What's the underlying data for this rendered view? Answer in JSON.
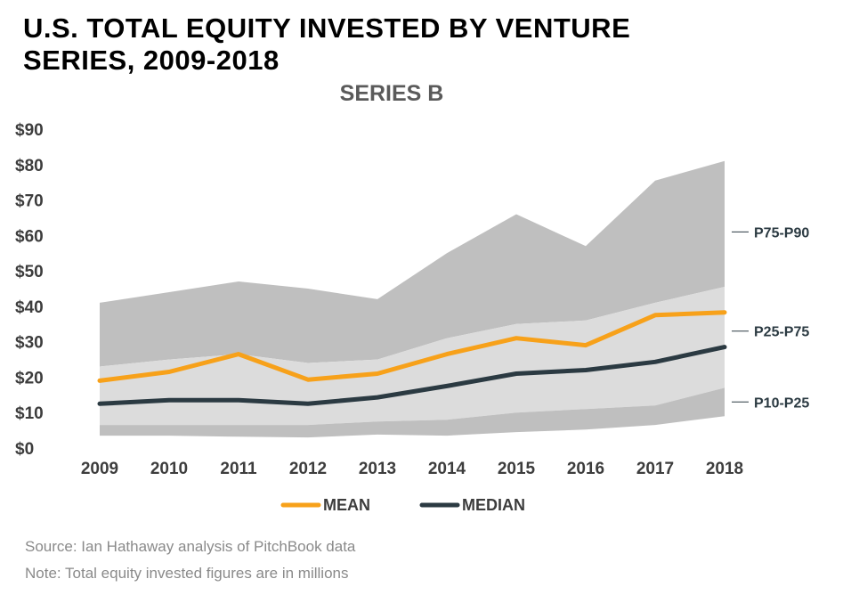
{
  "title_line1": "U.S. TOTAL EQUITY INVESTED BY VENTURE",
  "title_line2": "SERIES, 2009-2018",
  "source": "Source: Ian Hathaway analysis of PitchBook data",
  "note": "Note: Total equity invested figures are in millions",
  "colors": {
    "mean": "#f7a11a",
    "median": "#2b3a42",
    "band_p75_p90": "#bfbfbf",
    "band_p25_p75": "#dcdcdc",
    "band_p10_p25": "#bfbfbf",
    "axis_text": "#3d3d3d",
    "subtitle": "#5a5a5a"
  },
  "chart_data": {
    "type": "area",
    "title": "SERIES B",
    "xlabel": "",
    "ylabel": "",
    "ylim": [
      0,
      90
    ],
    "y_ticks": [
      0,
      10,
      20,
      30,
      40,
      50,
      60,
      70,
      80,
      90
    ],
    "y_tick_labels": [
      "$0",
      "$10",
      "$20",
      "$30",
      "$40",
      "$50",
      "$60",
      "$70",
      "$80",
      "$90"
    ],
    "categories": [
      "2009",
      "2010",
      "2011",
      "2012",
      "2013",
      "2014",
      "2015",
      "2016",
      "2017",
      "2018"
    ],
    "bands": [
      {
        "name": "P75-P90",
        "lower": [
          23,
          25,
          26.5,
          24,
          25,
          31,
          35,
          36,
          41,
          45.5
        ],
        "upper": [
          41,
          44,
          47,
          45,
          42,
          55,
          66,
          57,
          75.5,
          81
        ]
      },
      {
        "name": "P25-P75",
        "lower": [
          6.5,
          6.5,
          6.5,
          6.5,
          7.5,
          8,
          10,
          11,
          12,
          17
        ],
        "upper": [
          23,
          25,
          26.5,
          24,
          25,
          31,
          35,
          36,
          41,
          45.5
        ]
      },
      {
        "name": "P10-P25",
        "lower": [
          3.5,
          3.5,
          3.2,
          3,
          3.8,
          3.5,
          4.5,
          5.2,
          6.5,
          9
        ],
        "upper": [
          6.5,
          6.5,
          6.5,
          6.5,
          7.5,
          8,
          10,
          11,
          12,
          17
        ]
      }
    ],
    "band_labels": [
      {
        "name": "P75-P90",
        "value": 61
      },
      {
        "name": "P25-P75",
        "value": 33
      },
      {
        "name": "P10-P25",
        "value": 13
      }
    ],
    "series": [
      {
        "name": "MEAN",
        "values": [
          19,
          21.5,
          26.5,
          19.3,
          21,
          26.5,
          31,
          29,
          37.5,
          38.3
        ]
      },
      {
        "name": "MEDIAN",
        "values": [
          12.5,
          13.5,
          13.5,
          12.5,
          14.3,
          17.5,
          21,
          22,
          24.3,
          28.5
        ]
      }
    ],
    "legend": [
      {
        "name": "MEAN"
      },
      {
        "name": "MEDIAN"
      }
    ],
    "legend_position": "bottom"
  }
}
